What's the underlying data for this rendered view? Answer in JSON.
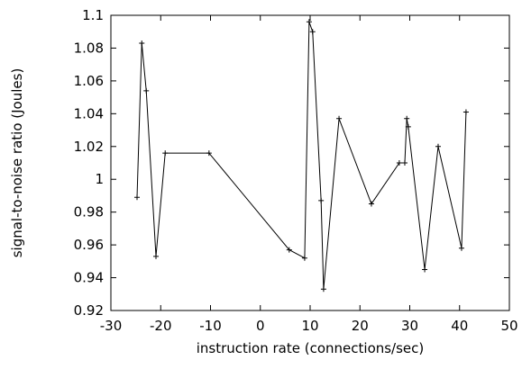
{
  "chart_data": {
    "type": "line",
    "x_label": "instruction rate (connections/sec)",
    "y_label": "signal-to-noise ratio (Joules)",
    "x": [
      -24.75,
      -23.8,
      -22.9,
      -20.95,
      -19.1,
      -10.3,
      5.8,
      8.9,
      9.8,
      10.5,
      12.2,
      12.7,
      15.8,
      22.3,
      27.9,
      29.0,
      29.4,
      29.7,
      33.0,
      35.7,
      40.4,
      41.3
    ],
    "values": [
      0.989,
      1.083,
      1.054,
      0.953,
      1.016,
      1.016,
      0.957,
      0.952,
      1.096,
      1.09,
      0.987,
      0.933,
      1.037,
      0.985,
      1.01,
      1.01,
      1.037,
      1.032,
      0.945,
      1.02,
      0.958,
      1.041
    ],
    "color": "#000000",
    "xlim": [
      -30,
      50
    ],
    "xticks": [
      -30,
      -20,
      -10,
      0,
      10,
      20,
      30,
      40,
      50
    ],
    "ylim": [
      0.92,
      1.1
    ],
    "yticks": [
      0.92,
      0.94,
      0.96,
      0.98,
      1,
      1.02,
      1.04,
      1.06,
      1.08,
      1.1
    ]
  }
}
